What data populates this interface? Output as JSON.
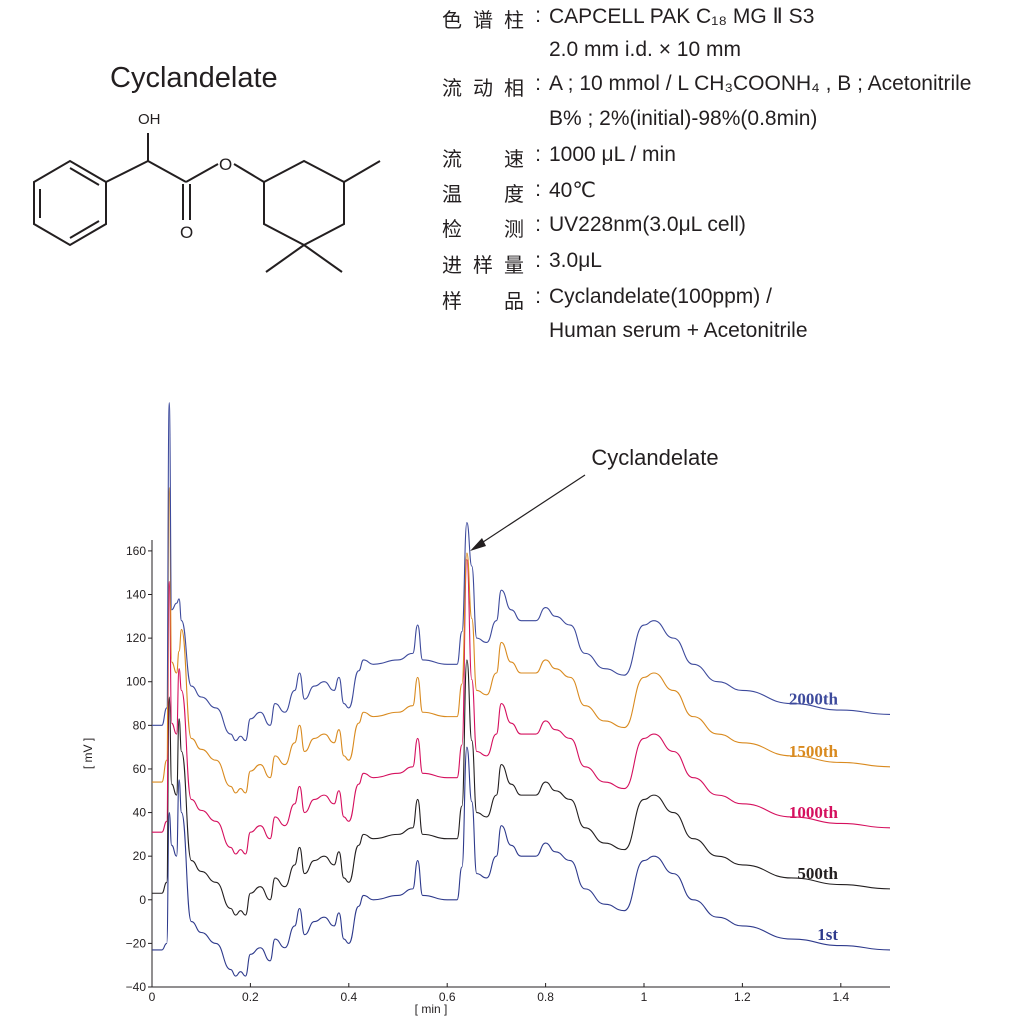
{
  "compound": {
    "name": "Cyclandelate",
    "atom_labels": {
      "hydroxyl": "OH",
      "ester_oxygen": "O",
      "carbonyl_oxygen": "O"
    }
  },
  "conditions": [
    {
      "label": "色谱柱",
      "value": "CAPCELL PAK C₁₈ MG Ⅱ S3",
      "continuation": "2.0 mm i.d. × 10 mm"
    },
    {
      "label": "流动相",
      "value": "A ; 10 mmol / L CH₃COONH₄ , B ; Acetonitrile",
      "continuation": "B% ; 2%(initial)-98%(0.8min)"
    },
    {
      "label": "流速",
      "value": "1000 μL / min"
    },
    {
      "label": "温度",
      "value": "40℃"
    },
    {
      "label": "检测",
      "value": "UV228nm(3.0μL cell)"
    },
    {
      "label": "进样量",
      "value": "3.0μL"
    },
    {
      "label": "样品",
      "value": "Cyclandelate(100ppm) /",
      "continuation": "Human serum + Acetonitrile"
    }
  ],
  "chart_data": {
    "type": "line",
    "xlabel": "[ min ]",
    "ylabel": "[ mV ]",
    "xlim": [
      0,
      1.5
    ],
    "ylim": [
      -40,
      165
    ],
    "x_ticks": [
      0,
      0.2,
      0.4,
      0.6,
      0.8,
      1,
      1.2,
      1.4
    ],
    "x_tick_labels": [
      "0",
      "0.2",
      "0.4",
      "0.6",
      "0.8",
      "1",
      "1.2",
      "1.4"
    ],
    "y_ticks": [
      -40,
      -20,
      0,
      20,
      40,
      60,
      80,
      100,
      120,
      140,
      160
    ],
    "y_tick_labels": [
      "−40",
      "−20",
      "0",
      "20",
      "40",
      "60",
      "80",
      "100",
      "120",
      "140",
      "160"
    ],
    "annotation": {
      "text": "Cyclandelate",
      "x": 0.64,
      "y": 155
    },
    "grid": false,
    "series": [
      {
        "name": "1st",
        "color": "#2e3a8c",
        "offset": 0,
        "x": [
          0,
          0.02,
          0.03,
          0.035,
          0.04,
          0.05,
          0.055,
          0.06,
          0.08,
          0.1,
          0.13,
          0.16,
          0.17,
          0.18,
          0.19,
          0.2,
          0.22,
          0.24,
          0.25,
          0.27,
          0.29,
          0.3,
          0.31,
          0.33,
          0.35,
          0.37,
          0.38,
          0.39,
          0.4,
          0.42,
          0.43,
          0.45,
          0.5,
          0.53,
          0.54,
          0.55,
          0.6,
          0.62,
          0.63,
          0.64,
          0.65,
          0.66,
          0.68,
          0.7,
          0.71,
          0.73,
          0.75,
          0.78,
          0.8,
          0.82,
          0.85,
          0.88,
          0.92,
          0.96,
          1.0,
          1.02,
          1.06,
          1.1,
          1.15,
          1.2,
          1.3,
          1.4,
          1.5
        ],
        "y": [
          -23,
          -23,
          -20,
          40,
          25,
          20,
          55,
          40,
          -10,
          -15,
          -20,
          -32,
          -35,
          -33,
          -35,
          -25,
          -22,
          -28,
          -18,
          -22,
          -12,
          -4,
          -16,
          -10,
          -8,
          -12,
          -6,
          -18,
          -20,
          -3,
          2,
          0,
          2,
          5,
          18,
          2,
          0,
          0,
          15,
          70,
          45,
          12,
          10,
          20,
          34,
          25,
          20,
          20,
          26,
          22,
          18,
          5,
          -2,
          -5,
          18,
          20,
          12,
          0,
          -8,
          -12,
          -18,
          -21,
          -23
        ]
      },
      {
        "name": "500th",
        "color": "#231f20",
        "offset": 28,
        "x": [
          0,
          0.02,
          0.03,
          0.035,
          0.04,
          0.05,
          0.055,
          0.06,
          0.08,
          0.1,
          0.13,
          0.16,
          0.17,
          0.18,
          0.19,
          0.2,
          0.22,
          0.24,
          0.25,
          0.27,
          0.29,
          0.3,
          0.31,
          0.33,
          0.35,
          0.37,
          0.38,
          0.39,
          0.4,
          0.42,
          0.43,
          0.45,
          0.5,
          0.53,
          0.54,
          0.55,
          0.6,
          0.62,
          0.63,
          0.64,
          0.65,
          0.66,
          0.68,
          0.7,
          0.71,
          0.73,
          0.75,
          0.78,
          0.8,
          0.82,
          0.85,
          0.88,
          0.92,
          0.96,
          1.0,
          1.02,
          1.06,
          1.1,
          1.15,
          1.2,
          1.3,
          1.4,
          1.5
        ],
        "y": [
          -25,
          -25,
          -20,
          65,
          25,
          20,
          55,
          40,
          -10,
          -15,
          -20,
          -32,
          -35,
          -33,
          -35,
          -25,
          -22,
          -28,
          -18,
          -22,
          -12,
          -4,
          -16,
          -10,
          -8,
          -12,
          -6,
          -18,
          -20,
          -3,
          2,
          0,
          2,
          5,
          18,
          2,
          0,
          0,
          15,
          82,
          45,
          12,
          10,
          20,
          34,
          25,
          20,
          20,
          26,
          22,
          18,
          5,
          -2,
          -5,
          18,
          20,
          12,
          0,
          -8,
          -12,
          -18,
          -21,
          -23
        ]
      },
      {
        "name": "1000th",
        "color": "#d5105e",
        "offset": 56,
        "x": [
          0,
          0.02,
          0.03,
          0.035,
          0.04,
          0.05,
          0.055,
          0.06,
          0.08,
          0.1,
          0.13,
          0.16,
          0.17,
          0.18,
          0.19,
          0.2,
          0.22,
          0.24,
          0.25,
          0.27,
          0.29,
          0.3,
          0.31,
          0.33,
          0.35,
          0.37,
          0.38,
          0.39,
          0.4,
          0.42,
          0.43,
          0.45,
          0.5,
          0.53,
          0.54,
          0.55,
          0.6,
          0.62,
          0.63,
          0.64,
          0.65,
          0.66,
          0.68,
          0.7,
          0.71,
          0.73,
          0.75,
          0.78,
          0.8,
          0.82,
          0.85,
          0.88,
          0.92,
          0.96,
          1.0,
          1.02,
          1.06,
          1.1,
          1.15,
          1.2,
          1.3,
          1.4,
          1.5
        ],
        "y": [
          -25,
          -25,
          -20,
          90,
          25,
          20,
          50,
          40,
          -10,
          -15,
          -20,
          -32,
          -35,
          -33,
          -35,
          -25,
          -22,
          -28,
          -18,
          -22,
          -12,
          -4,
          -16,
          -10,
          -8,
          -12,
          -6,
          -18,
          -20,
          -3,
          2,
          0,
          2,
          5,
          18,
          2,
          0,
          0,
          15,
          100,
          45,
          12,
          10,
          20,
          34,
          25,
          20,
          20,
          26,
          22,
          18,
          5,
          -2,
          -5,
          18,
          20,
          12,
          0,
          -8,
          -12,
          -18,
          -21,
          -23
        ]
      },
      {
        "name": "1500th",
        "color": "#d98a1f",
        "offset": 84,
        "x": [
          0,
          0.02,
          0.03,
          0.035,
          0.04,
          0.05,
          0.055,
          0.06,
          0.08,
          0.1,
          0.13,
          0.16,
          0.17,
          0.18,
          0.19,
          0.2,
          0.22,
          0.24,
          0.25,
          0.27,
          0.29,
          0.3,
          0.31,
          0.33,
          0.35,
          0.37,
          0.38,
          0.39,
          0.4,
          0.42,
          0.43,
          0.45,
          0.5,
          0.53,
          0.54,
          0.55,
          0.6,
          0.62,
          0.63,
          0.64,
          0.65,
          0.66,
          0.68,
          0.7,
          0.71,
          0.73,
          0.75,
          0.78,
          0.8,
          0.82,
          0.85,
          0.88,
          0.92,
          0.96,
          1.0,
          1.02,
          1.06,
          1.1,
          1.15,
          1.2,
          1.3,
          1.4,
          1.5
        ],
        "y": [
          -30,
          -30,
          -20,
          105,
          25,
          20,
          30,
          40,
          -10,
          -15,
          -20,
          -32,
          -35,
          -33,
          -35,
          -25,
          -22,
          -28,
          -18,
          -22,
          -12,
          -4,
          -16,
          -10,
          -8,
          -12,
          -6,
          -18,
          -20,
          -3,
          2,
          0,
          2,
          5,
          18,
          2,
          0,
          0,
          15,
          75,
          45,
          12,
          10,
          20,
          34,
          25,
          20,
          20,
          26,
          22,
          18,
          5,
          -2,
          -5,
          18,
          20,
          12,
          0,
          -8,
          -12,
          -18,
          -21,
          -23
        ]
      },
      {
        "name": "2000th",
        "color": "#3d4a9c",
        "offset": 108,
        "x": [
          0,
          0.02,
          0.03,
          0.035,
          0.04,
          0.05,
          0.055,
          0.06,
          0.08,
          0.1,
          0.13,
          0.16,
          0.17,
          0.18,
          0.19,
          0.2,
          0.22,
          0.24,
          0.25,
          0.27,
          0.29,
          0.3,
          0.31,
          0.33,
          0.35,
          0.37,
          0.38,
          0.39,
          0.4,
          0.42,
          0.43,
          0.45,
          0.5,
          0.53,
          0.54,
          0.55,
          0.6,
          0.62,
          0.63,
          0.64,
          0.65,
          0.66,
          0.68,
          0.7,
          0.71,
          0.73,
          0.75,
          0.78,
          0.8,
          0.82,
          0.85,
          0.88,
          0.92,
          0.96,
          1.0,
          1.02,
          1.06,
          1.1,
          1.15,
          1.2,
          1.3,
          1.4,
          1.5
        ],
        "y": [
          -28,
          -28,
          -20,
          120,
          25,
          28,
          30,
          20,
          -10,
          -15,
          -20,
          -32,
          -35,
          -33,
          -35,
          -25,
          -22,
          -28,
          -18,
          -22,
          -12,
          -4,
          -16,
          -10,
          -8,
          -12,
          -6,
          -18,
          -20,
          -3,
          2,
          0,
          2,
          5,
          18,
          2,
          0,
          0,
          15,
          65,
          45,
          12,
          10,
          20,
          34,
          25,
          20,
          20,
          26,
          22,
          18,
          5,
          -2,
          -5,
          18,
          20,
          12,
          0,
          -8,
          -12,
          -18,
          -21,
          -23
        ]
      }
    ]
  }
}
